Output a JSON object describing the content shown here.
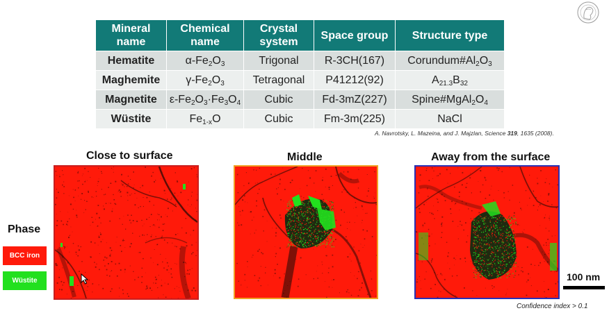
{
  "table": {
    "headers": [
      {
        "line1": "Mineral",
        "line2": "name"
      },
      {
        "line1": "Chemical",
        "line2": "name"
      },
      {
        "line1": "Crystal",
        "line2": "system"
      },
      {
        "line1": "Space group",
        "line2": ""
      },
      {
        "line1": "Structure type",
        "line2": ""
      }
    ],
    "rows": [
      {
        "mineral": "Hematite",
        "chem": {
          "pre": "α-Fe",
          "s1": "2",
          "mid": "O",
          "s2": "3",
          "mid2": "",
          "s3": "",
          "mid3": "",
          "s4": ""
        },
        "system": "Trigonal",
        "space_group": "R-3CH(167)",
        "structure": {
          "pre": "Corundum#Al",
          "s1": "2",
          "mid": "O",
          "s2": "3"
        }
      },
      {
        "mineral": "Maghemite",
        "chem": {
          "pre": "γ-Fe",
          "s1": "2",
          "mid": "O",
          "s2": "3",
          "mid2": "",
          "s3": "",
          "mid3": "",
          "s4": ""
        },
        "system": "Tetragonal",
        "space_group": "P41212(92)",
        "structure": {
          "pre": "A",
          "s1": "21.3",
          "mid": "B",
          "s2": "32"
        }
      },
      {
        "mineral": "Magnetite",
        "chem": {
          "pre": "ε-Fe",
          "s1": "2",
          "mid": "O",
          "s2": "3",
          "mid2": "·Fe",
          "s3": "3",
          "mid3": "O",
          "s4": "4"
        },
        "system": "Cubic",
        "space_group": "Fd-3mZ(227)",
        "structure": {
          "pre": "Spine#MgAl",
          "s1": "2",
          "mid": "O",
          "s2": "4"
        }
      },
      {
        "mineral": "Wüstite",
        "chem": {
          "pre": "Fe",
          "s1": "1-x",
          "mid": "O",
          "s2": "",
          "mid2": "",
          "s3": "",
          "mid3": "",
          "s4": ""
        },
        "system": "Cubic",
        "space_group": "Fm-3m(225)",
        "structure": {
          "pre": "NaCl",
          "s1": "",
          "mid": "",
          "s2": ""
        }
      }
    ]
  },
  "citation": {
    "pre": "A. Navrotsky, L. Mazeina, and J. Majzlan, Science ",
    "vol": "319",
    "post": ", 1635 (2008)."
  },
  "panels": [
    {
      "title": "Close to surface",
      "border_color": "#c81e1e"
    },
    {
      "title": "Middle",
      "border_color": "#f0a024"
    },
    {
      "title": "Away from the surface",
      "border_color": "#2830b4"
    }
  ],
  "legend": {
    "title": "Phase",
    "items": [
      {
        "label": "BCC iron",
        "color": "#ff1a0a"
      },
      {
        "label": "Wüstite",
        "color": "#22e01e"
      }
    ]
  },
  "scale_bar": {
    "label": "100 nm"
  },
  "note": "Confidence index > 0.1",
  "colors": {
    "bcc": "#ff1a0a",
    "wustite": "#22e01e",
    "header": "#127a77"
  },
  "icons": {
    "logo": "minerva-logo-icon",
    "cursor": "mouse-pointer-icon"
  }
}
